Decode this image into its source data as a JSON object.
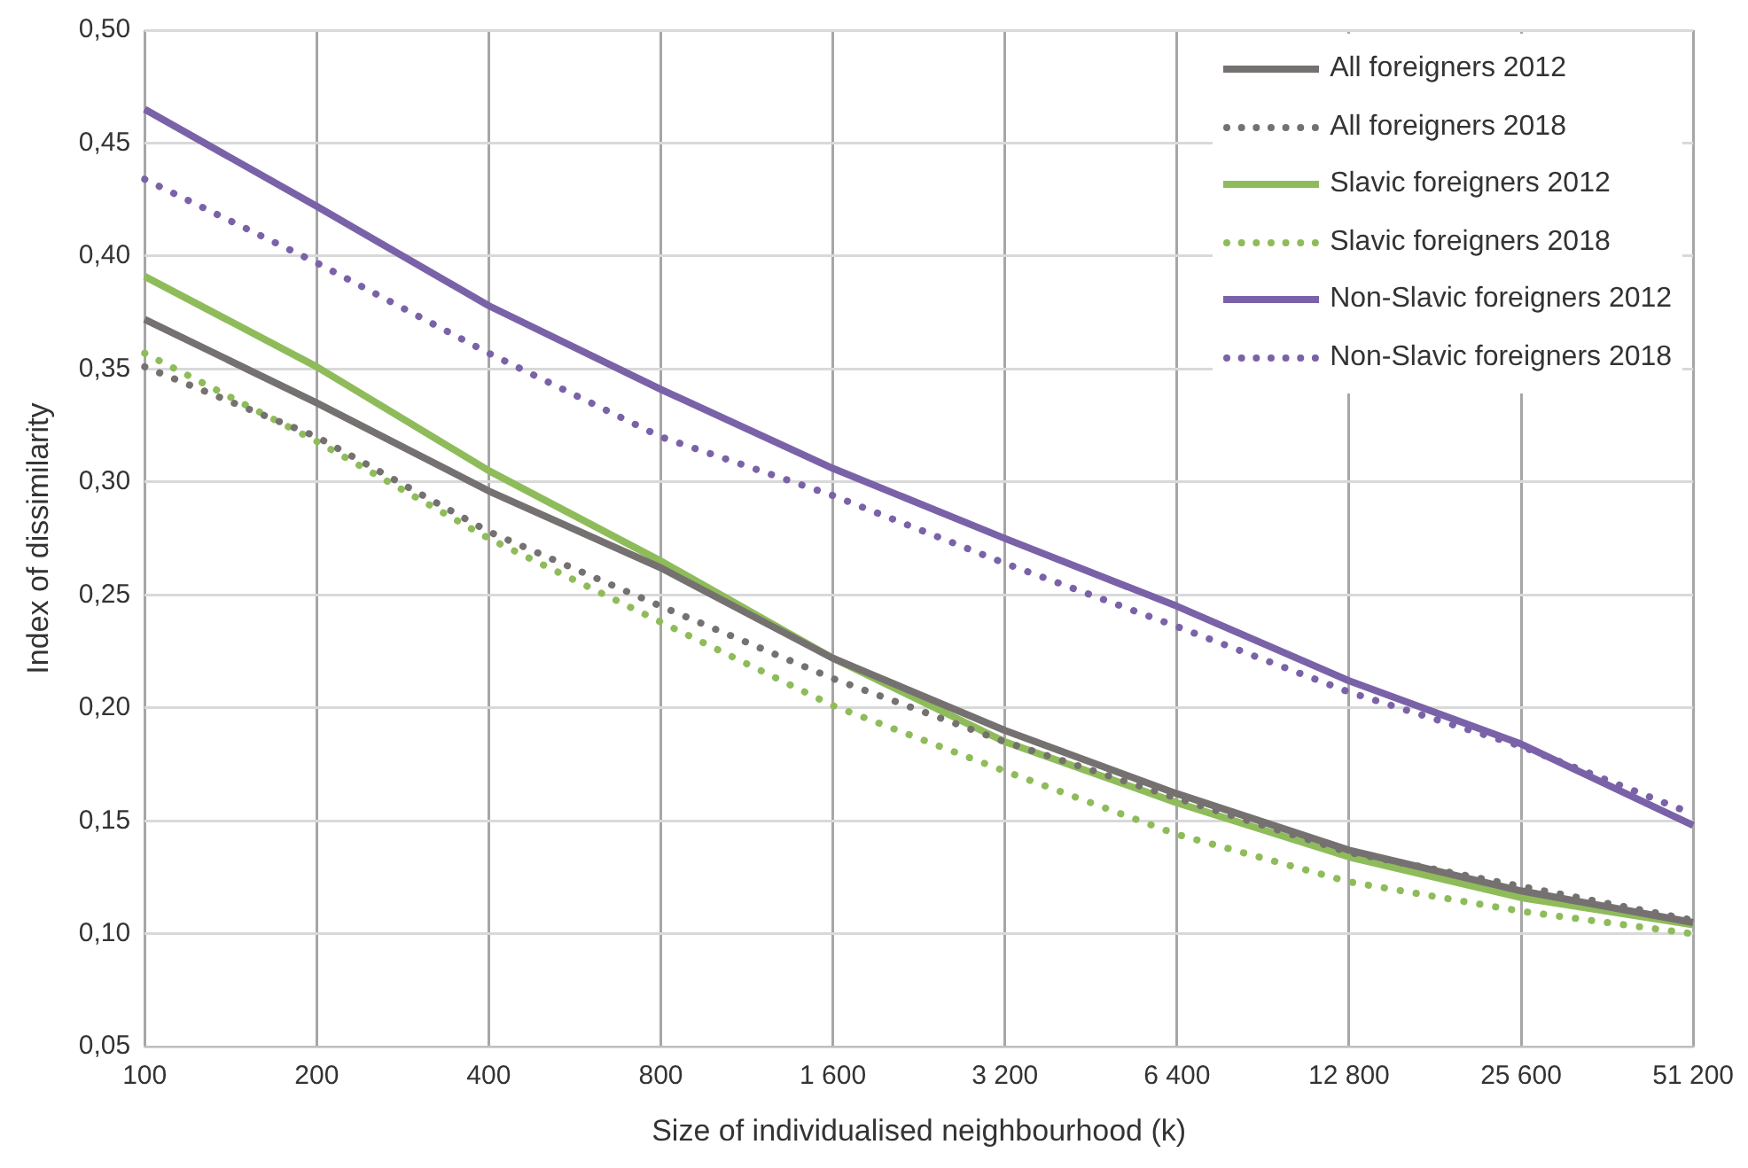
{
  "chart_data": {
    "type": "line",
    "xlabel": "Size of individualised neighbourhood (k)",
    "ylabel": "Index of dissimilarity",
    "categories": [
      "100",
      "200",
      "400",
      "800",
      "1 600",
      "3 200",
      "6 400",
      "12 800",
      "25 600",
      "51 200"
    ],
    "ylim": [
      0.05,
      0.5
    ],
    "yticks": [
      {
        "value": 0.05,
        "label": "0,05"
      },
      {
        "value": 0.1,
        "label": "0,10"
      },
      {
        "value": 0.15,
        "label": "0,15"
      },
      {
        "value": 0.2,
        "label": "0,20"
      },
      {
        "value": 0.25,
        "label": "0,25"
      },
      {
        "value": 0.3,
        "label": "0,30"
      },
      {
        "value": 0.35,
        "label": "0,35"
      },
      {
        "value": 0.4,
        "label": "0,40"
      },
      {
        "value": 0.45,
        "label": "0,45"
      },
      {
        "value": 0.5,
        "label": "0,50"
      }
    ],
    "grid": true,
    "legend": "top right",
    "marker": "none",
    "series": [
      {
        "name": "All foreigners 2012",
        "color": "#767171",
        "line_style": "solid",
        "values": [
          0.372,
          0.335,
          0.296,
          0.262,
          0.222,
          0.19,
          0.162,
          0.137,
          0.119,
          0.105
        ]
      },
      {
        "name": "All foreigners 2018",
        "color": "#767171",
        "line_style": "dotted",
        "values": [
          0.351,
          0.32,
          0.278,
          0.245,
          0.213,
          0.185,
          0.16,
          0.136,
          0.121,
          0.106
        ]
      },
      {
        "name": "Slavic foreigners 2012",
        "color": "#8fbc5a",
        "line_style": "solid",
        "values": [
          0.391,
          0.351,
          0.305,
          0.265,
          0.222,
          0.185,
          0.158,
          0.134,
          0.116,
          0.104
        ]
      },
      {
        "name": "Slavic foreigners 2018",
        "color": "#8fbc5a",
        "line_style": "dotted",
        "values": [
          0.357,
          0.318,
          0.275,
          0.238,
          0.201,
          0.172,
          0.144,
          0.123,
          0.11,
          0.1
        ]
      },
      {
        "name": "Non-Slavic foreigners 2012",
        "color": "#7a62a8",
        "line_style": "solid",
        "values": [
          0.465,
          0.422,
          0.378,
          0.341,
          0.306,
          0.275,
          0.245,
          0.212,
          0.184,
          0.148
        ]
      },
      {
        "name": "Non-Slavic foreigners 2018",
        "color": "#7a62a8",
        "line_style": "dotted",
        "values": [
          0.434,
          0.397,
          0.357,
          0.32,
          0.294,
          0.264,
          0.236,
          0.207,
          0.183,
          0.153
        ]
      }
    ]
  }
}
